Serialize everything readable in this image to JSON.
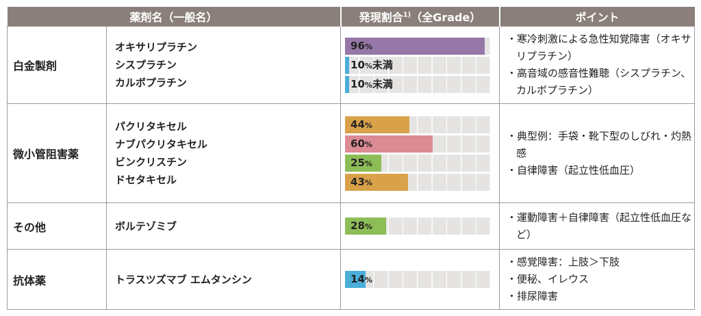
{
  "header": {
    "col1": "薬剤名（一般名）",
    "col2": "発現割合",
    "col2_sup": "1)",
    "col2_suffix": "（全Grade）",
    "col3": "ポイント"
  },
  "colors": {
    "track": "#e6e4e2",
    "purple": "#9577a8",
    "blue": "#4aaed8",
    "orange": "#d9a24a",
    "pink": "#dc8a94",
    "green": "#8dbd57",
    "header": "#8a7f7a"
  },
  "chart_data": {
    "type": "bar",
    "title": "",
    "xlabel": "",
    "ylabel": "",
    "xlim": [
      0,
      100
    ],
    "groups": [
      {
        "category": "白金製剤",
        "rows": [
          {
            "drug": "オキサリプラチン",
            "value": 96,
            "label": "96",
            "unit": "%",
            "suffix": "",
            "color": "#9577a8"
          },
          {
            "drug": "シスプラチン",
            "value": 3,
            "label": "10",
            "unit": "%",
            "suffix": "未満",
            "color": "#4aaed8"
          },
          {
            "drug": "カルボプラチン",
            "value": 3,
            "label": "10",
            "unit": "%",
            "suffix": "未満",
            "color": "#4aaed8"
          }
        ],
        "points": [
          "寒冷刺激による急性知覚障害（オキサリプラチン）",
          "高音域の感音性難聴（シスプラチン、カルボプラチン）"
        ]
      },
      {
        "category": "微小管阻害薬",
        "rows": [
          {
            "drug": "パクリタキセル",
            "value": 44,
            "label": "44",
            "unit": "%",
            "suffix": "",
            "color": "#d9a24a"
          },
          {
            "drug": "ナブパクリタキセル",
            "value": 60,
            "label": "60",
            "unit": "%",
            "suffix": "",
            "color": "#dc8a94"
          },
          {
            "drug": "ビンクリスチン",
            "value": 25,
            "label": "25",
            "unit": "%",
            "suffix": "",
            "color": "#8dbd57"
          },
          {
            "drug": "ドセタキセル",
            "value": 43,
            "label": "43",
            "unit": "%",
            "suffix": "",
            "color": "#d9a24a"
          }
        ],
        "points": [
          "典型例：手袋・靴下型のしびれ・灼熱感",
          "自律障害（起立性低血圧）"
        ]
      },
      {
        "category": "その他",
        "rows": [
          {
            "drug": "ボルテゾミブ",
            "value": 28,
            "label": "28",
            "unit": "%",
            "suffix": "",
            "color": "#8dbd57"
          }
        ],
        "points": [
          "運動障害＋自律障害（起立性低血圧など）"
        ]
      },
      {
        "category": "抗体薬",
        "rows": [
          {
            "drug": "トラスツズマブ エムタンシン",
            "value": 14,
            "label": "14",
            "unit": "%",
            "suffix": "",
            "color": "#4aaed8"
          }
        ],
        "points": [
          "感覚障害：上肢＞下肢",
          "便秘、イレウス",
          "排尿障害"
        ]
      }
    ]
  }
}
